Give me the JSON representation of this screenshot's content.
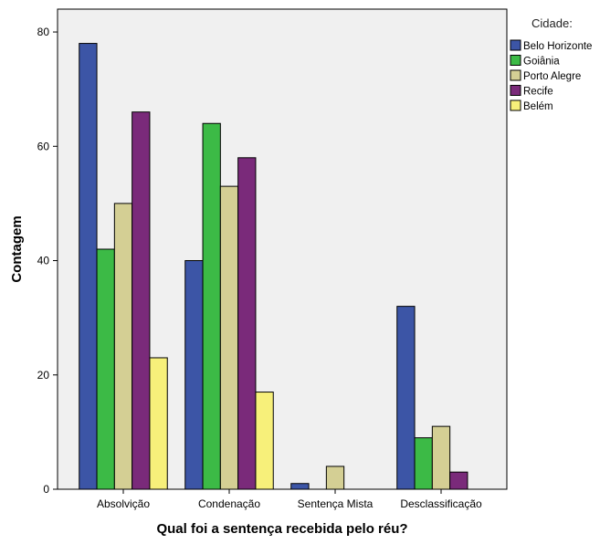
{
  "chart_data": {
    "type": "bar",
    "title": "",
    "xlabel": "Qual foi a sentença recebida pelo réu?",
    "ylabel": "Contagem",
    "ylim": [
      0,
      84
    ],
    "yticks": [
      0,
      20,
      40,
      60,
      80
    ],
    "categories": [
      "Absolvição",
      "Condenação",
      "Sentença Mista",
      "Desclassificação"
    ],
    "legend_title": "Cidade:",
    "legend_position": "top-right",
    "series": [
      {
        "name": "Belo Horizonte",
        "color": "#3c55a6",
        "values": [
          78,
          40,
          1,
          32
        ]
      },
      {
        "name": "Goiânia",
        "color": "#3cba46",
        "values": [
          42,
          64,
          0,
          9
        ]
      },
      {
        "name": "Porto Alegre",
        "color": "#d4cf94",
        "values": [
          50,
          53,
          4,
          11
        ]
      },
      {
        "name": "Recife",
        "color": "#7a2a7a",
        "values": [
          66,
          58,
          0,
          3
        ]
      },
      {
        "name": "Belém",
        "color": "#f7f07a",
        "values": [
          23,
          17,
          0,
          0
        ]
      }
    ],
    "plot_background": "#f0f0f0",
    "grid": false
  }
}
